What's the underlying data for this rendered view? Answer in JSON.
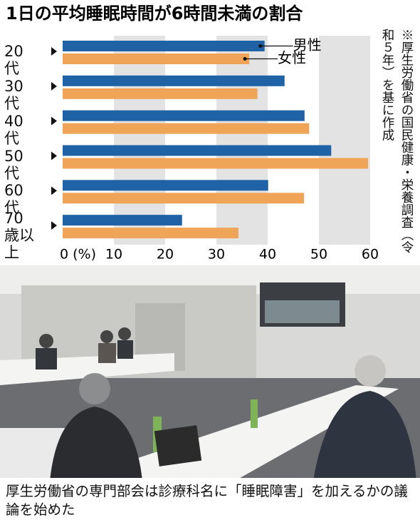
{
  "chart_data": {
    "type": "bar",
    "orientation": "horizontal",
    "title": "1日の平均睡眠時間が6時間未満の割合",
    "categories": [
      "20代",
      "30代",
      "40代",
      "50代",
      "60代",
      "70歳以上"
    ],
    "series": [
      {
        "name": "男性",
        "color": "#1f63a6",
        "values": [
          39.4,
          43.3,
          47.2,
          52.4,
          40.1,
          23.3
        ]
      },
      {
        "name": "女性",
        "color": "#f0a457",
        "values": [
          36.4,
          38.0,
          48.1,
          59.6,
          47.1,
          34.3
        ]
      }
    ],
    "xlim": [
      0,
      60
    ],
    "xticks": [
      {
        "value": 0,
        "label": "0 (%)"
      },
      10,
      20,
      30,
      40,
      50,
      60
    ],
    "grid": true,
    "note": "※厚生労働省の国民健康・栄養調査（令和５年）を基に作成"
  },
  "caption": "厚生労働省の専門部会は診療科名に「睡眠障害」を加えるかの議論を始めた"
}
